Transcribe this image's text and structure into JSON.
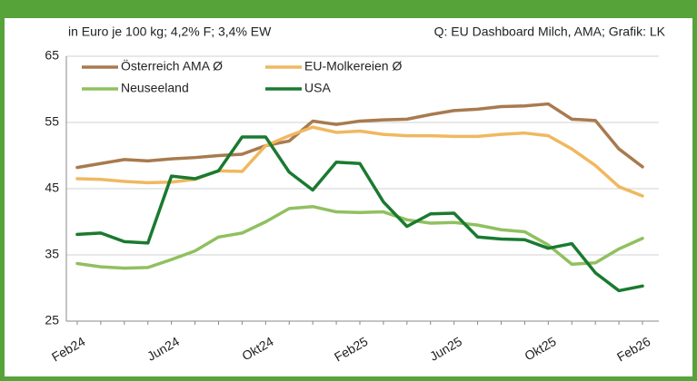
{
  "chart_data": {
    "type": "line",
    "subtitle": "in Euro je 100 kg; 4,2% F; 3,4% EW",
    "source": "Q: EU Dashboard Milch, AMA; Grafik: LK",
    "categories": [
      "Feb24",
      null,
      null,
      null,
      "Jun24",
      null,
      null,
      null,
      "Okt24",
      null,
      null,
      null,
      "Feb25",
      null,
      null,
      null,
      "Jun25",
      null,
      null,
      null,
      "Okt25",
      null,
      null,
      null,
      "Feb26"
    ],
    "series": [
      {
        "name": "Österreich AMA Ø",
        "color": "#a87a4e",
        "values": [
          48.2,
          48.8,
          49.4,
          49.2,
          49.5,
          49.7,
          50,
          50.2,
          51.5,
          52.2,
          55.2,
          54.7,
          55.2,
          55.4,
          55.5,
          56.2,
          56.8,
          57,
          57.4,
          57.5,
          57.8,
          55.5,
          55.3,
          51,
          48.3
        ]
      },
      {
        "name": "EU-Molkereien Ø",
        "color": "#f0b860",
        "values": [
          46.5,
          46.4,
          46.1,
          45.9,
          46,
          46.4,
          47.7,
          47.6,
          51.5,
          53,
          54.3,
          53.5,
          53.7,
          53.2,
          53,
          53,
          52.9,
          52.9,
          53.2,
          53.4,
          53,
          51,
          48.5,
          45.3,
          43.9
        ]
      },
      {
        "name": "Neuseeland",
        "color": "#90c060",
        "values": [
          33.7,
          33.2,
          33,
          33.1,
          34.3,
          35.6,
          37.7,
          38.3,
          40,
          42,
          42.3,
          41.5,
          41.4,
          41.5,
          40.3,
          39.8,
          39.9,
          39.5,
          38.8,
          38.5,
          36.5,
          33.6,
          33.8,
          35.9,
          37.5
        ]
      },
      {
        "name": "USA",
        "color": "#1a7a30",
        "values": [
          38.1,
          38.3,
          37,
          36.8,
          46.9,
          46.5,
          47.7,
          52.8,
          52.8,
          47.5,
          44.8,
          49,
          48.8,
          43,
          39.3,
          41.2,
          41.3,
          37.7,
          37.4,
          37.3,
          36,
          36.7,
          32.3,
          29.6,
          30.3
        ]
      }
    ],
    "ylim": [
      25,
      65
    ],
    "yticks": [
      25,
      35,
      45,
      55,
      65
    ],
    "grid": true
  }
}
